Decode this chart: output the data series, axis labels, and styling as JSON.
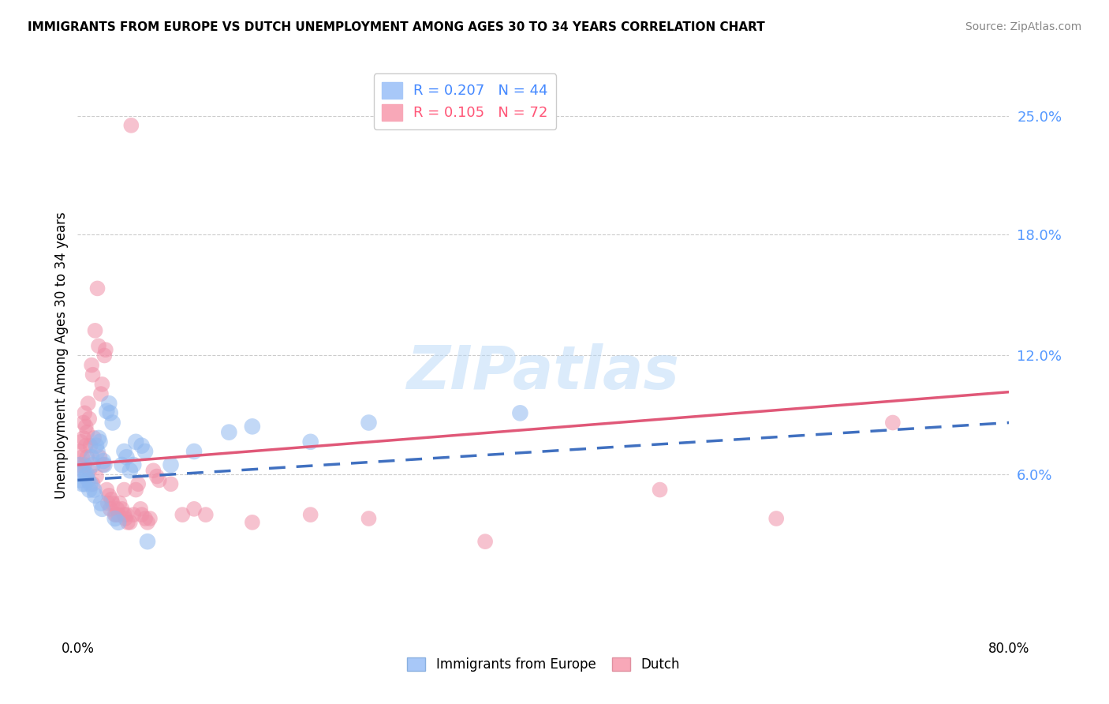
{
  "title": "IMMIGRANTS FROM EUROPE VS DUTCH UNEMPLOYMENT AMONG AGES 30 TO 34 YEARS CORRELATION CHART",
  "source": "Source: ZipAtlas.com",
  "ylabel": "Unemployment Among Ages 30 to 34 years",
  "ytick_values": [
    0.063,
    0.125,
    0.188,
    0.25
  ],
  "xlim": [
    0.0,
    0.8
  ],
  "ylim": [
    -0.02,
    0.27
  ],
  "blue_series": {
    "name": "Immigrants from Europe",
    "color": "#90b8f0",
    "edge_color": "#6090d0",
    "trend_color": "#4070c0",
    "R": 0.207,
    "N": 44,
    "points": [
      [
        0.002,
        0.068
      ],
      [
        0.003,
        0.06
      ],
      [
        0.004,
        0.058
      ],
      [
        0.005,
        0.065
      ],
      [
        0.006,
        0.058
      ],
      [
        0.007,
        0.062
      ],
      [
        0.008,
        0.063
      ],
      [
        0.009,
        0.06
      ],
      [
        0.01,
        0.055
      ],
      [
        0.011,
        0.058
      ],
      [
        0.012,
        0.072
      ],
      [
        0.013,
        0.068
      ],
      [
        0.014,
        0.055
      ],
      [
        0.015,
        0.052
      ],
      [
        0.016,
        0.078
      ],
      [
        0.017,
        0.075
      ],
      [
        0.018,
        0.082
      ],
      [
        0.019,
        0.08
      ],
      [
        0.02,
        0.048
      ],
      [
        0.021,
        0.045
      ],
      [
        0.022,
        0.07
      ],
      [
        0.023,
        0.068
      ],
      [
        0.025,
        0.096
      ],
      [
        0.027,
        0.1
      ],
      [
        0.028,
        0.095
      ],
      [
        0.03,
        0.09
      ],
      [
        0.032,
        0.04
      ],
      [
        0.035,
        0.038
      ],
      [
        0.038,
        0.068
      ],
      [
        0.04,
        0.075
      ],
      [
        0.042,
        0.072
      ],
      [
        0.045,
        0.065
      ],
      [
        0.048,
        0.068
      ],
      [
        0.05,
        0.08
      ],
      [
        0.055,
        0.078
      ],
      [
        0.058,
        0.075
      ],
      [
        0.06,
        0.028
      ],
      [
        0.08,
        0.068
      ],
      [
        0.1,
        0.075
      ],
      [
        0.13,
        0.085
      ],
      [
        0.15,
        0.088
      ],
      [
        0.2,
        0.08
      ],
      [
        0.25,
        0.09
      ],
      [
        0.38,
        0.095
      ]
    ]
  },
  "pink_series": {
    "name": "Dutch",
    "color": "#f090a8",
    "edge_color": "#d06080",
    "trend_color": "#e05878",
    "R": 0.105,
    "N": 72,
    "points": [
      [
        0.001,
        0.068
      ],
      [
        0.002,
        0.075
      ],
      [
        0.003,
        0.08
      ],
      [
        0.004,
        0.072
      ],
      [
        0.004,
        0.065
      ],
      [
        0.005,
        0.09
      ],
      [
        0.005,
        0.082
      ],
      [
        0.006,
        0.068
      ],
      [
        0.006,
        0.095
      ],
      [
        0.007,
        0.078
      ],
      [
        0.007,
        0.088
      ],
      [
        0.008,
        0.085
      ],
      [
        0.008,
        0.072
      ],
      [
        0.009,
        0.1
      ],
      [
        0.01,
        0.065
      ],
      [
        0.01,
        0.092
      ],
      [
        0.011,
        0.078
      ],
      [
        0.012,
        0.12
      ],
      [
        0.013,
        0.115
      ],
      [
        0.013,
        0.058
      ],
      [
        0.014,
        0.082
      ],
      [
        0.015,
        0.138
      ],
      [
        0.016,
        0.062
      ],
      [
        0.017,
        0.16
      ],
      [
        0.018,
        0.13
      ],
      [
        0.019,
        0.072
      ],
      [
        0.02,
        0.105
      ],
      [
        0.021,
        0.11
      ],
      [
        0.022,
        0.068
      ],
      [
        0.023,
        0.125
      ],
      [
        0.024,
        0.128
      ],
      [
        0.025,
        0.055
      ],
      [
        0.026,
        0.048
      ],
      [
        0.027,
        0.052
      ],
      [
        0.028,
        0.045
      ],
      [
        0.029,
        0.05
      ],
      [
        0.03,
        0.048
      ],
      [
        0.032,
        0.042
      ],
      [
        0.033,
        0.042
      ],
      [
        0.034,
        0.045
      ],
      [
        0.035,
        0.042
      ],
      [
        0.036,
        0.048
      ],
      [
        0.038,
        0.045
      ],
      [
        0.04,
        0.042
      ],
      [
        0.04,
        0.055
      ],
      [
        0.041,
        0.04
      ],
      [
        0.042,
        0.042
      ],
      [
        0.043,
        0.038
      ],
      [
        0.045,
        0.038
      ],
      [
        0.046,
        0.245
      ],
      [
        0.048,
        0.042
      ],
      [
        0.05,
        0.055
      ],
      [
        0.052,
        0.058
      ],
      [
        0.054,
        0.045
      ],
      [
        0.055,
        0.042
      ],
      [
        0.058,
        0.04
      ],
      [
        0.06,
        0.038
      ],
      [
        0.062,
        0.04
      ],
      [
        0.065,
        0.065
      ],
      [
        0.068,
        0.062
      ],
      [
        0.07,
        0.06
      ],
      [
        0.08,
        0.058
      ],
      [
        0.09,
        0.042
      ],
      [
        0.1,
        0.045
      ],
      [
        0.11,
        0.042
      ],
      [
        0.15,
        0.038
      ],
      [
        0.2,
        0.042
      ],
      [
        0.25,
        0.04
      ],
      [
        0.35,
        0.028
      ],
      [
        0.5,
        0.055
      ],
      [
        0.6,
        0.04
      ],
      [
        0.7,
        0.09
      ]
    ]
  },
  "watermark_text": "ZIPatlas",
  "background_color": "#ffffff",
  "grid_color": "#cccccc"
}
